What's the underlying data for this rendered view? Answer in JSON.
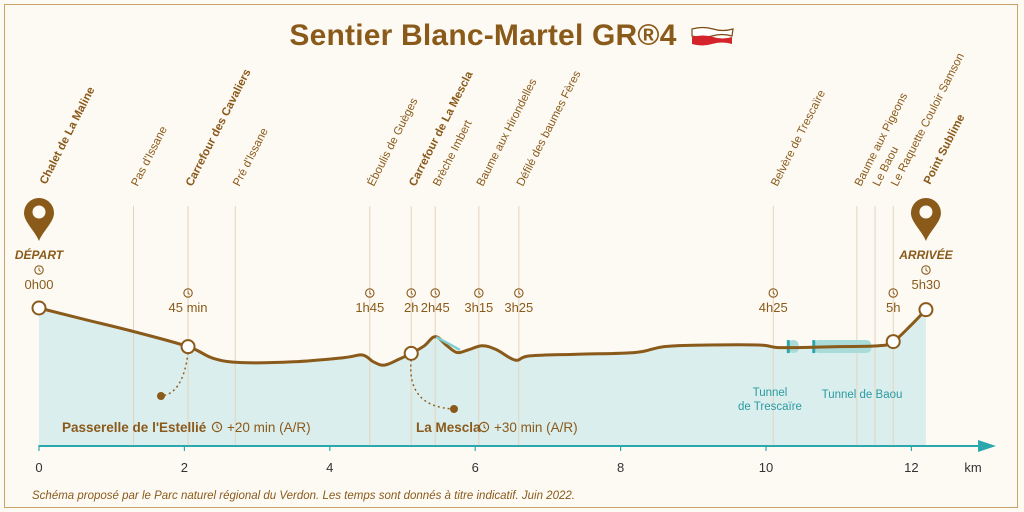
{
  "title": "Sentier Blanc-Martel GR®4",
  "colors": {
    "brown": "#8a5a1a",
    "teal": "#2ba7ad",
    "fill": "#dbeeee",
    "tunnel": "#a9dcd8",
    "flag_red": "#d4232b"
  },
  "icons": {
    "gr_flag": "gr-waymark-flag-icon",
    "pin": "map-pin-icon",
    "clock": "clock-icon"
  },
  "chart_data": {
    "type": "area",
    "xlabel": "km",
    "xlim": [
      0,
      13
    ],
    "xticks": [
      0,
      2,
      4,
      6,
      8,
      10,
      12
    ],
    "profile": [
      {
        "x": 0.0,
        "y": 1.0
      },
      {
        "x": 0.6,
        "y": 0.87
      },
      {
        "x": 1.3,
        "y": 0.72
      },
      {
        "x": 2.05,
        "y": 0.54
      },
      {
        "x": 2.4,
        "y": 0.4
      },
      {
        "x": 2.8,
        "y": 0.35
      },
      {
        "x": 3.5,
        "y": 0.36
      },
      {
        "x": 4.2,
        "y": 0.41
      },
      {
        "x": 4.45,
        "y": 0.44
      },
      {
        "x": 4.6,
        "y": 0.36
      },
      {
        "x": 4.75,
        "y": 0.32
      },
      {
        "x": 4.95,
        "y": 0.39
      },
      {
        "x": 5.12,
        "y": 0.46
      },
      {
        "x": 5.3,
        "y": 0.55
      },
      {
        "x": 5.45,
        "y": 0.66
      },
      {
        "x": 5.6,
        "y": 0.56
      },
      {
        "x": 5.75,
        "y": 0.47
      },
      {
        "x": 5.9,
        "y": 0.5
      },
      {
        "x": 6.1,
        "y": 0.55
      },
      {
        "x": 6.3,
        "y": 0.5
      },
      {
        "x": 6.55,
        "y": 0.38
      },
      {
        "x": 6.75,
        "y": 0.43
      },
      {
        "x": 7.4,
        "y": 0.45
      },
      {
        "x": 8.2,
        "y": 0.47
      },
      {
        "x": 8.6,
        "y": 0.54
      },
      {
        "x": 9.2,
        "y": 0.56
      },
      {
        "x": 9.9,
        "y": 0.56
      },
      {
        "x": 10.15,
        "y": 0.53
      },
      {
        "x": 10.5,
        "y": 0.53
      },
      {
        "x": 11.0,
        "y": 0.54
      },
      {
        "x": 11.55,
        "y": 0.55
      },
      {
        "x": 11.75,
        "y": 0.6
      },
      {
        "x": 12.0,
        "y": 0.8
      },
      {
        "x": 12.2,
        "y": 0.98
      }
    ],
    "waypoints": [
      {
        "name": "Chalet de La Maline",
        "km": 0.0,
        "bold": true
      },
      {
        "name": "Pas d'Issane",
        "km": 1.3,
        "bold": false
      },
      {
        "name": "Carrefour des Cavaliers",
        "km": 2.05,
        "bold": true
      },
      {
        "name": "Pré d'Issane",
        "km": 2.7,
        "bold": false
      },
      {
        "name": "Éboulis de Guèges",
        "km": 4.55,
        "bold": false
      },
      {
        "name": "Carrefour de La Mescla",
        "km": 5.12,
        "bold": true
      },
      {
        "name": "Brèche Imbert",
        "km": 5.45,
        "bold": false
      },
      {
        "name": "Baume aux Hirondelles",
        "km": 6.05,
        "bold": false
      },
      {
        "name": "Défilé des baumes Fères",
        "km": 6.6,
        "bold": false
      },
      {
        "name": "Belvère de Trescaïre",
        "km": 10.1,
        "bold": false
      },
      {
        "name": "Baume aux Pigeons",
        "km": 11.25,
        "bold": false
      },
      {
        "name": "Le Baou",
        "km": 11.5,
        "bold": false
      },
      {
        "name": "Le Raquette Couloir Samson",
        "km": 11.75,
        "bold": false
      },
      {
        "name": "Point Sublime",
        "km": 12.2,
        "bold": true
      }
    ],
    "times": [
      {
        "label": "0h00",
        "km": 0.0
      },
      {
        "label": "45 min",
        "km": 2.05
      },
      {
        "label": "1h45",
        "km": 4.55
      },
      {
        "label": "2h",
        "km": 5.12
      },
      {
        "label": "2h45",
        "km": 5.45
      },
      {
        "label": "3h15",
        "km": 6.05
      },
      {
        "label": "3h25",
        "km": 6.6
      },
      {
        "label": "4h25",
        "km": 10.1
      },
      {
        "label": "5h",
        "km": 11.75
      },
      {
        "label": "5h30",
        "km": 12.2
      }
    ],
    "markers": [
      {
        "km": 0.0,
        "y": 1.0
      },
      {
        "km": 2.05,
        "y": 0.54
      },
      {
        "km": 5.12,
        "y": 0.46
      },
      {
        "km": 11.75,
        "y": 0.6
      },
      {
        "km": 12.2,
        "y": 0.98
      }
    ],
    "start_label": "DÉPART",
    "end_label": "ARRIVÉE",
    "tunnels": [
      {
        "name_lines": [
          "Tunnel",
          "de Trescaïre"
        ],
        "from_km": 10.3,
        "to_km": 10.45
      },
      {
        "name_lines": [
          "Tunnel de Baou"
        ],
        "from_km": 10.65,
        "to_km": 11.45
      }
    ],
    "detours": [
      {
        "name": "Passerelle de l'Estellié",
        "time": "+20 min (A/R)",
        "from_km": 2.05
      },
      {
        "name": "La Mescla",
        "time": "+30 min (A/R)",
        "from_km": 5.12
      }
    ]
  },
  "footnote": "Schéma proposé par le Parc naturel régional du Verdon. Les temps sont donnés à titre indicatif. Juin 2022."
}
